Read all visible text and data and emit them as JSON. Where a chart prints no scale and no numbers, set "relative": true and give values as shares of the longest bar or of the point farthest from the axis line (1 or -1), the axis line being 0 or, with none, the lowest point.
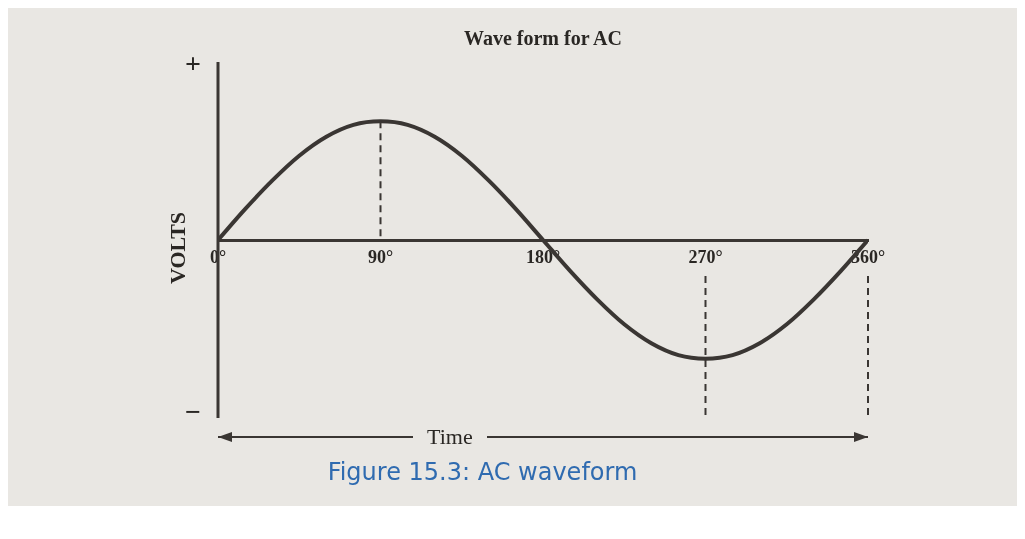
{
  "chart_data": {
    "type": "line",
    "title": "Wave form for AC",
    "xlabel": "Time",
    "ylabel": "VOLTS",
    "relative": true,
    "legend": false,
    "grid": false,
    "marker": "none",
    "line_style": "solid",
    "x": [
      0,
      15,
      30,
      45,
      60,
      75,
      90,
      105,
      120,
      135,
      150,
      165,
      180,
      195,
      210,
      225,
      240,
      255,
      270,
      285,
      300,
      315,
      330,
      345,
      360
    ],
    "series": [
      {
        "color": "#3a3633",
        "values": [
          0,
          0.26,
          0.5,
          0.71,
          0.87,
          0.97,
          1,
          0.97,
          0.87,
          0.71,
          0.5,
          0.26,
          0,
          -0.26,
          -0.5,
          -0.71,
          -0.87,
          -0.97,
          -1,
          -0.97,
          -0.87,
          -0.71,
          -0.5,
          -0.26,
          0
        ]
      }
    ],
    "xlim": [
      0,
      360
    ],
    "xticks": [
      {
        "value": 0,
        "label": "0°"
      },
      {
        "value": 90,
        "label": "90°"
      },
      {
        "value": 180,
        "label": "180°"
      },
      {
        "value": 270,
        "label": "270°"
      },
      {
        "value": 360,
        "label": "360°"
      }
    ],
    "ref_lines": [
      {
        "axis": "x",
        "value": 90,
        "line_style": "dashed",
        "color": "#3a3633"
      },
      {
        "axis": "x",
        "value": 270,
        "line_style": "dashed",
        "color": "#3a3633"
      },
      {
        "axis": "x",
        "value": 360,
        "line_style": "dashed",
        "color": "#3a3633"
      }
    ],
    "annotations": [
      "+",
      "−",
      "Figure 15.3: AC waveform"
    ]
  }
}
